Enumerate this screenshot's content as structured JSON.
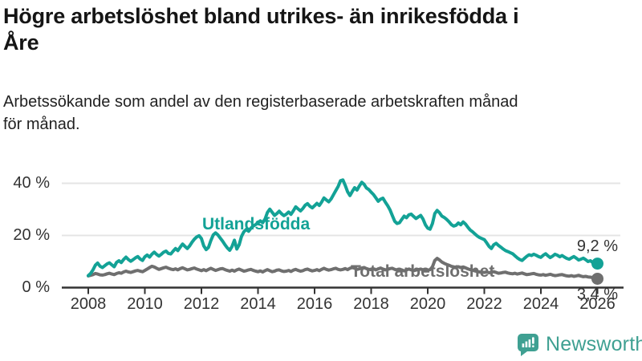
{
  "header": {
    "title_lines": [
      "Högre arbetslöshet bland utrikes- än inrikesfödda i",
      "Åre"
    ],
    "subtitle_lines": [
      "Arbetssökande som andel av den registerbaserade arbetskraften månad",
      "för månad."
    ]
  },
  "chart_data": {
    "type": "line",
    "title": "Högre arbetslöshet bland utrikes- än inrikesfödda i Åre",
    "subtitle": "Arbetssökande som andel av den registerbaserade arbetskraften månad för månad.",
    "frequency": "monthly",
    "start_year": 2008,
    "x_ticks": [
      "2008",
      "2010",
      "2012",
      "2014",
      "2016",
      "2018",
      "2020",
      "2022",
      "2024",
      "2026"
    ],
    "x_tick_years": [
      2008,
      2010,
      2012,
      2014,
      2016,
      2018,
      2020,
      2022,
      2024,
      2026
    ],
    "y_ticks": [
      {
        "value": 40,
        "label": "40 %"
      },
      {
        "value": 20,
        "label": "20 %"
      },
      {
        "value": 0,
        "label": "0 %"
      }
    ],
    "y_range": [
      0,
      45
    ],
    "grid": "horizontal",
    "colors": {
      "grid": "#e4e4e4",
      "axis": "#333333",
      "tick_text": "#333333"
    },
    "series": [
      {
        "name": "Utlandsfödda",
        "color": "#13a296",
        "end_label": "9,2 %",
        "values": [
          4.6,
          5.4,
          6.8,
          8.6,
          9.4,
          8.2,
          7.7,
          8.4,
          9.1,
          9.5,
          8.7,
          8.0,
          9.7,
          10.3,
          9.6,
          10.8,
          11.7,
          10.8,
          10.1,
          10.7,
          11.4,
          11.9,
          11.0,
          10.4,
          11.8,
          12.5,
          11.7,
          12.8,
          13.6,
          12.7,
          12.1,
          12.8,
          13.6,
          14.0,
          13.1,
          12.9,
          14.0,
          15.0,
          14.2,
          15.5,
          16.7,
          15.8,
          15.0,
          16.0,
          17.4,
          18.6,
          19.4,
          19.9,
          18.8,
          16.0,
          14.6,
          15.4,
          18.0,
          20.2,
          21.0,
          20.2,
          19.0,
          17.8,
          16.4,
          15.2,
          14.3,
          15.8,
          18.2,
          14.8,
          16.4,
          19.6,
          21.4,
          22.3,
          21.6,
          22.8,
          23.6,
          24.2,
          24.8,
          25.6,
          24.9,
          26.3,
          28.8,
          30.1,
          28.9,
          27.7,
          28.4,
          29.3,
          28.3,
          27.6,
          28.2,
          29.0,
          28.1,
          29.5,
          31.0,
          30.2,
          29.4,
          30.3,
          31.6,
          32.2,
          31.2,
          30.6,
          31.4,
          32.3,
          31.5,
          32.8,
          34.4,
          33.6,
          32.9,
          34.0,
          35.6,
          37.2,
          38.8,
          41.0,
          41.3,
          39.2,
          36.8,
          35.3,
          36.9,
          38.3,
          37.4,
          39.0,
          40.4,
          39.6,
          38.2,
          37.6,
          36.6,
          35.7,
          34.4,
          33.1,
          33.9,
          34.3,
          32.8,
          31.4,
          29.8,
          27.6,
          25.4,
          24.6,
          24.9,
          26.2,
          27.4,
          26.8,
          27.9,
          28.2,
          27.3,
          26.5,
          27.1,
          27.7,
          26.3,
          24.1,
          22.8,
          22.4,
          24.6,
          28.4,
          29.6,
          28.7,
          27.4,
          26.9,
          26.2,
          25.3,
          24.2,
          23.6,
          23.9,
          24.8,
          24.1,
          25.2,
          24.4,
          23.2,
          22.1,
          21.4,
          20.6,
          19.8,
          19.2,
          18.8,
          18.4,
          17.2,
          15.8,
          15.0,
          16.4,
          17.0,
          16.2,
          15.5,
          14.8,
          14.2,
          13.8,
          13.4,
          13.0,
          12.2,
          11.4,
          10.8,
          10.4,
          11.2,
          12.0,
          12.6,
          12.3,
          12.8,
          12.4,
          11.9,
          11.6,
          12.4,
          13.0,
          12.2,
          11.5,
          12.1,
          12.8,
          12.4,
          11.8,
          12.3,
          11.7,
          11.2,
          10.9,
          11.4,
          11.9,
          11.3,
          10.6,
          10.9,
          11.3,
          10.7,
          10.0,
          10.3,
          9.6,
          9.0,
          9.2
        ]
      },
      {
        "name": "Total arbetslöshet",
        "color": "#6f6f6f",
        "end_label": "3,4 %",
        "values": [
          4.5,
          4.7,
          5.0,
          5.4,
          5.2,
          4.9,
          4.8,
          5.0,
          5.3,
          5.5,
          5.2,
          5.0,
          5.4,
          5.7,
          5.5,
          6.0,
          6.3,
          6.0,
          5.8,
          6.1,
          6.4,
          6.6,
          6.3,
          6.1,
          6.6,
          7.1,
          7.7,
          8.2,
          7.9,
          7.4,
          7.0,
          7.3,
          7.6,
          7.8,
          7.4,
          7.1,
          6.9,
          7.2,
          6.8,
          7.3,
          7.6,
          7.2,
          6.8,
          7.0,
          7.3,
          7.5,
          7.1,
          6.8,
          6.5,
          6.9,
          6.5,
          7.0,
          7.4,
          7.0,
          6.6,
          6.9,
          7.2,
          7.3,
          6.9,
          6.6,
          6.3,
          6.7,
          6.3,
          6.8,
          7.1,
          6.7,
          6.3,
          6.5,
          6.8,
          7.0,
          6.6,
          6.3,
          6.1,
          6.4,
          6.0,
          6.5,
          6.9,
          6.5,
          6.1,
          6.3,
          6.7,
          6.8,
          6.4,
          6.2,
          6.3,
          6.6,
          6.2,
          6.7,
          7.0,
          6.6,
          6.3,
          6.5,
          6.9,
          7.1,
          6.7,
          6.4,
          6.6,
          6.9,
          6.5,
          7.0,
          7.4,
          7.0,
          6.7,
          6.9,
          7.2,
          7.4,
          7.0,
          6.8,
          7.0,
          7.3,
          6.9,
          7.4,
          7.7,
          7.4,
          7.0,
          7.2,
          7.5,
          7.7,
          7.3,
          7.0,
          6.9,
          7.2,
          6.8,
          7.2,
          7.5,
          7.1,
          6.8,
          7.0,
          7.3,
          7.4,
          7.0,
          6.7,
          6.5,
          6.8,
          6.4,
          6.8,
          7.1,
          6.8,
          6.5,
          6.7,
          6.9,
          7.1,
          6.8,
          6.6,
          6.7,
          6.9,
          8.0,
          10.4,
          11.2,
          10.6,
          9.8,
          9.3,
          8.9,
          8.6,
          8.2,
          7.9,
          7.8,
          8.0,
          7.7,
          7.9,
          7.6,
          7.2,
          6.9,
          6.7,
          6.4,
          6.2,
          6.0,
          5.9,
          5.8,
          6.0,
          5.7,
          5.9,
          6.1,
          5.8,
          5.5,
          5.6,
          5.8,
          5.9,
          5.6,
          5.4,
          5.3,
          5.5,
          5.2,
          5.4,
          5.6,
          5.3,
          5.0,
          5.1,
          5.3,
          5.4,
          5.1,
          4.9,
          4.8,
          5.0,
          4.7,
          4.9,
          5.1,
          4.8,
          4.6,
          4.7,
          4.9,
          5.0,
          4.7,
          4.5,
          4.4,
          4.6,
          4.3,
          4.5,
          4.7,
          4.4,
          4.2,
          4.3,
          4.1,
          4.0,
          3.8,
          3.6,
          3.4
        ]
      }
    ]
  },
  "footer": {
    "brand": "Newsworthy",
    "brand_color": "#3fa092",
    "logo_icon": "bar-chart-speech-bubble-icon"
  }
}
